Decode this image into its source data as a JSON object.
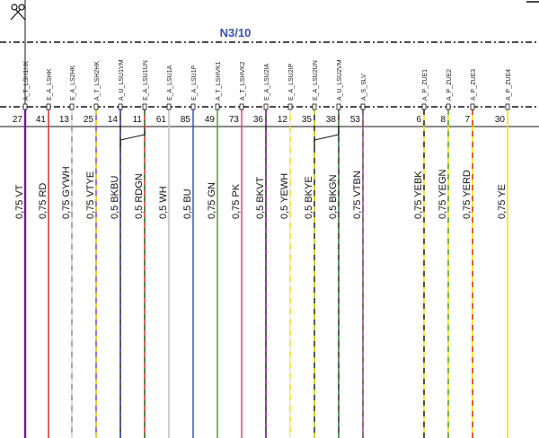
{
  "connector": {
    "title": "N3/10"
  },
  "pins": [
    {
      "name": "A_T_LSH1HK",
      "number": "27",
      "wire": "0,75 VT",
      "colors": [
        "#6a1b9a"
      ]
    },
    {
      "name": "E_A_LSHK",
      "number": "41",
      "wire": "0,75 RD",
      "colors": [
        "#d32f2f"
      ]
    },
    {
      "name": "E_A_LS2HK",
      "number": "13",
      "wire": "0,75 GYWH",
      "colors": [
        "#8a8a8a",
        "#e6e6e6"
      ]
    },
    {
      "name": "A_T_LSH2HK",
      "number": "25",
      "wire": "0,75 VTYE",
      "colors": [
        "#8e44ad",
        "#f1e000"
      ]
    },
    {
      "name": "A_U_LSU1VM",
      "number": "14",
      "wire": "0,5 BKBU",
      "colors": [
        "#222222",
        "#3f51b5"
      ]
    },
    {
      "name": "E_A_LSU1UN",
      "number": "11",
      "wire": "0,5 RDGN",
      "colors": [
        "#d32f2f",
        "#2e7d32"
      ]
    },
    {
      "name": "E_A_LSU1A",
      "number": "61",
      "wire": "0,5 WH",
      "colors": [
        "#bdbdbd"
      ]
    },
    {
      "name": "E_A_LSU1P",
      "number": "85",
      "wire": "0,5 BU",
      "colors": [
        "#3f51b5"
      ]
    },
    {
      "name": "A_T_LSHVK1",
      "number": "49",
      "wire": "0,75 GN",
      "colors": [
        "#43a047"
      ]
    },
    {
      "name": "A_T_LSHVK2",
      "number": "73",
      "wire": "0,75 PK",
      "colors": [
        "#ec407a"
      ]
    },
    {
      "name": "E_A_LSU2IA",
      "number": "36",
      "wire": "0,5 BKVT",
      "colors": [
        "#222222",
        "#9c27b0"
      ]
    },
    {
      "name": "E_A_LSU2IP",
      "number": "12",
      "wire": "0,5 YEWH",
      "colors": [
        "#f1e000",
        "#eeeeee"
      ]
    },
    {
      "name": "E_A_LSU2UN",
      "number": "35",
      "wire": "0,5 BKYE",
      "colors": [
        "#222222",
        "#f1e000"
      ]
    },
    {
      "name": "A_U_LSU2VM",
      "number": "38",
      "wire": "0,5 BKGN",
      "colors": [
        "#222222",
        "#43a047"
      ]
    },
    {
      "name": "A_S_SLV",
      "number": "53",
      "wire": "0,75 VTBN",
      "colors": [
        "#8e44ad",
        "#795548"
      ]
    },
    {
      "name": "A_P_ZUE1",
      "number": "6",
      "wire": "0,75 YEBK",
      "colors": [
        "#f1e000",
        "#222222"
      ]
    },
    {
      "name": "A_P_ZUE2",
      "number": "8",
      "wire": "0,75 YEGN",
      "colors": [
        "#f1e000",
        "#43a047"
      ]
    },
    {
      "name": "A_P_ZUE3",
      "number": "7",
      "wire": "0,75 YERD",
      "colors": [
        "#f1e000",
        "#d32f2f"
      ]
    },
    {
      "name": "A_P_ZUE4",
      "number": "30",
      "wire": "0,75 YE",
      "colors": [
        "#f1e000"
      ]
    }
  ],
  "twisted_pairs": [
    [
      4,
      5
    ],
    [
      12,
      13
    ]
  ],
  "icons": {
    "top_left": "scissors-icon",
    "top_right": "corner-mark-icon"
  }
}
